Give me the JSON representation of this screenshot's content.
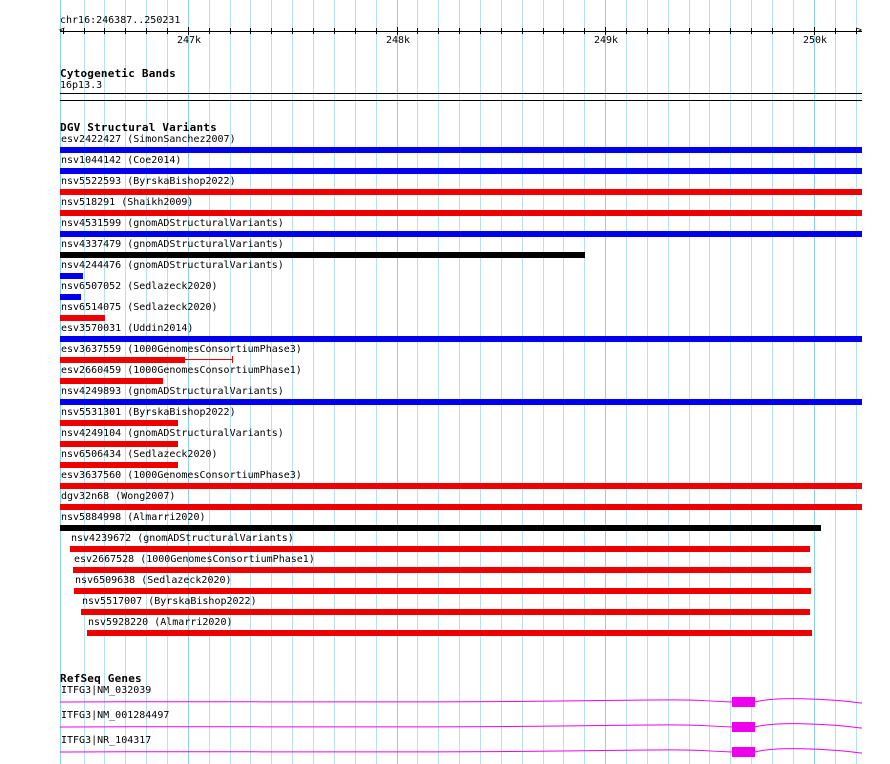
{
  "colors": {
    "blue": "#0000ee",
    "red": "#ee0000",
    "black": "#000000",
    "magenta": "#ee00ee",
    "grid": "#b9e0ee",
    "grid_major": "#8ecfe4"
  },
  "ruler": {
    "region": "chr16:246387..250231",
    "ticks": [
      {
        "label": "247k"
      },
      {
        "label": "248k"
      },
      {
        "label": "249k"
      },
      {
        "label": "250k"
      }
    ]
  },
  "cytoband": {
    "title": "Cytogenetic Bands",
    "band": "16p13.3"
  },
  "dgv": {
    "title": "DGV Structural Variants",
    "features": [
      {
        "label": "esv2422427 (SimonSanchez2007)",
        "start": 246387,
        "end": 250231,
        "color": "blue"
      },
      {
        "label": "nsv1044142 (Coe2014)",
        "start": 246387,
        "end": 250231,
        "color": "blue"
      },
      {
        "label": "nsv5522593 (ByrskaBishop2022)",
        "start": 246387,
        "end": 250231,
        "color": "red"
      },
      {
        "label": "nsv518291 (Shaikh2009)",
        "start": 246387,
        "end": 250231,
        "color": "red"
      },
      {
        "label": "nsv4531599 (gnomADStructuralVariants)",
        "start": 246387,
        "end": 250231,
        "color": "blue"
      },
      {
        "label": "nsv4337479 (gnomADStructuralVariants)",
        "start": 246387,
        "end": 248902,
        "color": "black"
      },
      {
        "label": "nsv4244476 (gnomADStructuralVariants)",
        "start": 246387,
        "end": 246499,
        "color": "blue"
      },
      {
        "label": "nsv6507052 (Sedlazeck2020)",
        "start": 246387,
        "end": 246489,
        "color": "blue"
      },
      {
        "label": "nsv6514075 (Sedlazeck2020)",
        "start": 246387,
        "end": 246604,
        "color": "red"
      },
      {
        "label": "esv3570031 (Uddin2014)",
        "start": 246387,
        "end": 250231,
        "color": "blue"
      },
      {
        "label": "esv3637559 (1000GenomesConsortiumPhase3)",
        "start": 246387,
        "end": 246987,
        "color": "red",
        "extend_to": 247213
      },
      {
        "label": "esv2660459 (1000GenomesConsortiumPhase1)",
        "start": 246387,
        "end": 246882,
        "color": "red"
      },
      {
        "label": "nsv4249893 (gnomADStructuralVariants)",
        "start": 246387,
        "end": 250231,
        "color": "blue"
      },
      {
        "label": "nsv5531301 (ByrskaBishop2022)",
        "start": 246387,
        "end": 246954,
        "color": "red"
      },
      {
        "label": "nsv4249104 (gnomADStructuralVariants)",
        "start": 246387,
        "end": 246954,
        "color": "red"
      },
      {
        "label": "nsv6506434 (Sedlazeck2020)",
        "start": 246387,
        "end": 246954,
        "color": "red"
      },
      {
        "label": "esv3637560 (1000GenomesConsortiumPhase3)",
        "start": 246387,
        "end": 250231,
        "color": "red"
      },
      {
        "label": "dgv32n68 (Wong2007)",
        "start": 246387,
        "end": 250231,
        "color": "red"
      },
      {
        "label": "nsv5884998 (Almarri2020)",
        "start": 246387,
        "end": 250034,
        "color": "black"
      },
      {
        "label": "nsv4239672 (gnomADStructuralVariants)",
        "start": 246435,
        "end": 249981,
        "color": "red"
      },
      {
        "label": "esv2667528 (1000GenomesConsortiumPhase1)",
        "start": 246447,
        "end": 249986,
        "color": "red"
      },
      {
        "label": "nsv6509638 (Sedlazeck2020)",
        "start": 246453,
        "end": 249986,
        "color": "red"
      },
      {
        "label": "nsv5517007 (ByrskaBishop2022)",
        "start": 246488,
        "end": 249981,
        "color": "red"
      },
      {
        "label": "nsv5928220 (Almarri2020)",
        "start": 246517,
        "end": 249991,
        "color": "red"
      }
    ]
  },
  "refseq": {
    "title": "RefSeq Genes",
    "features": [
      {
        "label": "ITFG3|NM_032039",
        "exon_start": 249606,
        "exon_end": 249716
      },
      {
        "label": "ITFG3|NM_001284497",
        "exon_start": 249606,
        "exon_end": 249716
      },
      {
        "label": "ITFG3|NR_104317",
        "exon_start": 249606,
        "exon_end": 249716
      }
    ]
  }
}
